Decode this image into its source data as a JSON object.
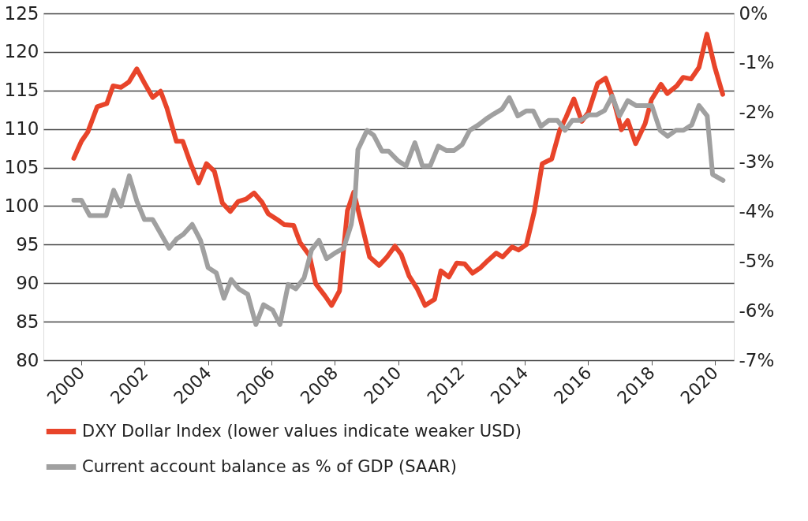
{
  "chart_data": {
    "type": "line",
    "xlim": [
      1998.8,
      2020.6
    ],
    "xticks": [
      2000,
      2002,
      2004,
      2006,
      2008,
      2010,
      2012,
      2014,
      2016,
      2018,
      2020
    ],
    "ylim": [
      80,
      125
    ],
    "yticks": [
      80,
      85,
      90,
      95,
      100,
      105,
      110,
      115,
      120,
      125
    ],
    "y2lim": [
      -7,
      0
    ],
    "y2ticks": [
      {
        "value": -7,
        "label": "-7%"
      },
      {
        "value": -6,
        "label": "-6%"
      },
      {
        "value": -5,
        "label": "-5%"
      },
      {
        "value": -4,
        "label": "-4%"
      },
      {
        "value": -3,
        "label": "-3%"
      },
      {
        "value": -2,
        "label": "-2%"
      },
      {
        "value": -1,
        "label": "-1%"
      },
      {
        "value": 0,
        "label": "0%"
      }
    ],
    "grid": "y",
    "legend": "bottom",
    "line_style": "solid",
    "marker": "none",
    "series": [
      {
        "name": "DXY Dollar Index (lower values indicate weaker USD)",
        "color": "#e8442a",
        "axis": "y",
        "x": [
          1999.76,
          2000.0,
          2000.2,
          2000.5,
          2000.8,
          2001.0,
          2001.25,
          2001.5,
          2001.75,
          2002.0,
          2002.25,
          2002.5,
          2002.7,
          2003.0,
          2003.2,
          2003.45,
          2003.7,
          2003.95,
          2004.2,
          2004.45,
          2004.7,
          2004.95,
          2005.2,
          2005.45,
          2005.7,
          2005.9,
          2006.2,
          2006.4,
          2006.7,
          2006.9,
          2007.2,
          2007.4,
          2007.7,
          2007.9,
          2008.15,
          2008.4,
          2008.6,
          2008.85,
          2009.1,
          2009.4,
          2009.65,
          2009.9,
          2010.1,
          2010.35,
          2010.6,
          2010.85,
          2011.15,
          2011.35,
          2011.6,
          2011.85,
          2012.1,
          2012.35,
          2012.6,
          2012.85,
          2013.1,
          2013.3,
          2013.6,
          2013.8,
          2014.05,
          2014.3,
          2014.55,
          2014.85,
          2015.1,
          2015.3,
          2015.55,
          2015.8,
          2016.0,
          2016.3,
          2016.55,
          2016.8,
          2017.05,
          2017.25,
          2017.5,
          2017.8,
          2018.0,
          2018.3,
          2018.5,
          2018.8,
          2019.0,
          2019.25,
          2019.5,
          2019.75,
          2020.0,
          2020.25
        ],
        "values": [
          106.2,
          108.4,
          109.6,
          112.9,
          113.3,
          115.6,
          115.4,
          116.1,
          117.8,
          115.9,
          114.1,
          114.9,
          112.7,
          108.4,
          108.4,
          105.5,
          103.0,
          105.5,
          104.5,
          100.4,
          99.3,
          100.6,
          100.9,
          101.7,
          100.5,
          99.0,
          98.2,
          97.6,
          97.5,
          95.3,
          93.6,
          89.9,
          88.3,
          87.1,
          89.0,
          99.4,
          101.8,
          97.6,
          93.4,
          92.3,
          93.4,
          94.8,
          93.7,
          90.9,
          89.3,
          87.1,
          87.9,
          91.6,
          90.8,
          92.6,
          92.5,
          91.3,
          92.0,
          93.0,
          93.9,
          93.4,
          94.7,
          94.3,
          95.0,
          99.3,
          105.5,
          106.1,
          109.8,
          111.5,
          113.9,
          111.0,
          112.1,
          115.9,
          116.6,
          113.8,
          109.9,
          111.1,
          108.1,
          110.7,
          113.8,
          115.8,
          114.6,
          115.6,
          116.7,
          116.5,
          118.0,
          122.3,
          118.0,
          114.5
        ]
      },
      {
        "name": "Current account balance as % of GDP (SAAR)",
        "color": "#a0a0a0",
        "axis": "y2",
        "x": [
          1999.76,
          2000.0,
          2000.26,
          2000.5,
          2000.78,
          2001.02,
          2001.25,
          2001.51,
          2001.75,
          2001.99,
          2002.25,
          2002.51,
          2002.77,
          2003.01,
          2003.22,
          2003.5,
          2003.76,
          2004.0,
          2004.26,
          2004.5,
          2004.73,
          2004.97,
          2005.25,
          2005.51,
          2005.75,
          2006.04,
          2006.27,
          2006.53,
          2006.77,
          2007.03,
          2007.27,
          2007.5,
          2007.74,
          2008.0,
          2008.28,
          2008.52,
          2008.64,
          2008.73,
          2009.02,
          2009.23,
          2009.49,
          2009.7,
          2009.99,
          2010.25,
          2010.53,
          2010.77,
          2011.01,
          2011.27,
          2011.53,
          2011.76,
          2012.02,
          2012.26,
          2012.54,
          2012.78,
          2013.02,
          2013.28,
          2013.51,
          2013.78,
          2014.04,
          2014.27,
          2014.51,
          2014.75,
          2015.03,
          2015.27,
          2015.5,
          2015.76,
          2016.02,
          2016.26,
          2016.52,
          2016.76,
          2016.99,
          2017.25,
          2017.51,
          2017.78,
          2018.01,
          2018.27,
          2018.51,
          2018.77,
          2019.01,
          2019.27,
          2019.5,
          2019.76,
          2019.93,
          2020.26
        ],
        "values": [
          -3.77,
          -3.77,
          -4.08,
          -4.08,
          -4.08,
          -3.57,
          -3.89,
          -3.28,
          -3.79,
          -4.16,
          -4.16,
          -4.45,
          -4.74,
          -4.55,
          -4.46,
          -4.26,
          -4.58,
          -5.13,
          -5.24,
          -5.75,
          -5.37,
          -5.56,
          -5.67,
          -6.28,
          -5.88,
          -5.99,
          -6.28,
          -5.47,
          -5.56,
          -5.34,
          -4.77,
          -4.58,
          -4.95,
          -4.84,
          -4.74,
          -4.26,
          -3.72,
          -2.75,
          -2.36,
          -2.46,
          -2.78,
          -2.78,
          -2.97,
          -3.08,
          -2.61,
          -3.08,
          -3.08,
          -2.68,
          -2.77,
          -2.77,
          -2.65,
          -2.36,
          -2.25,
          -2.13,
          -2.03,
          -1.93,
          -1.7,
          -2.07,
          -1.97,
          -1.97,
          -2.28,
          -2.16,
          -2.16,
          -2.36,
          -2.16,
          -2.16,
          -2.05,
          -2.05,
          -1.96,
          -1.67,
          -2.07,
          -1.76,
          -1.86,
          -1.86,
          -1.86,
          -2.36,
          -2.48,
          -2.36,
          -2.36,
          -2.25,
          -1.86,
          -2.07,
          -3.25,
          -3.37
        ]
      }
    ]
  }
}
